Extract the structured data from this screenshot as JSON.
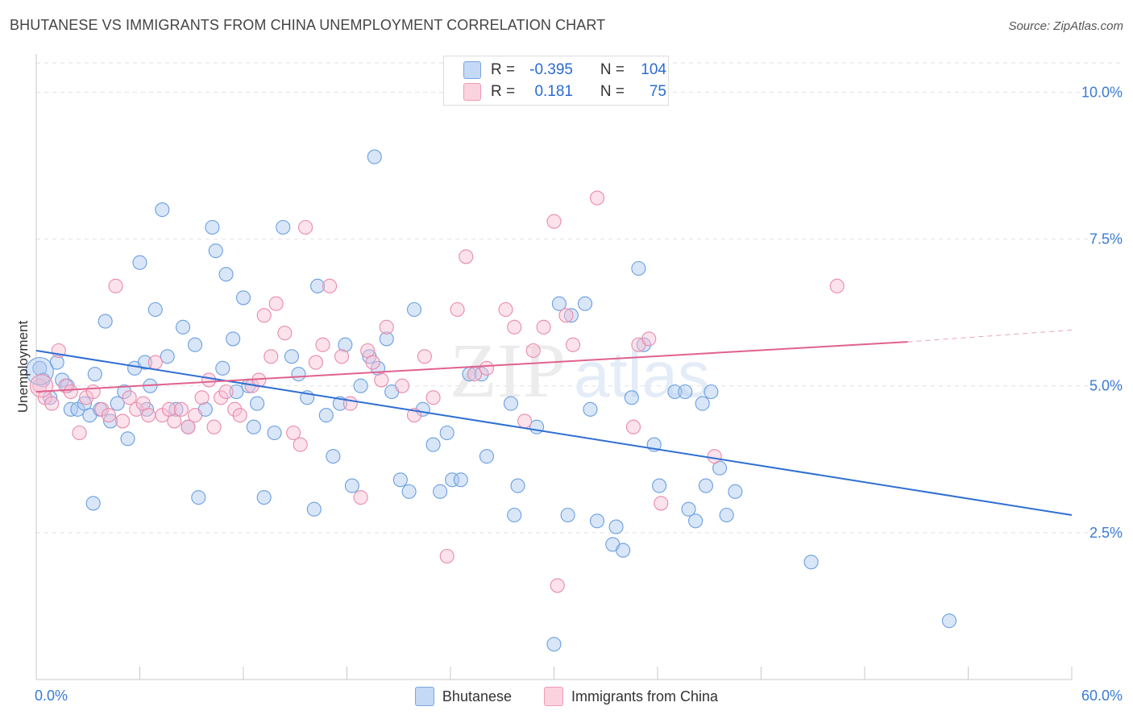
{
  "header": {
    "title": "BHUTANESE VS IMMIGRANTS FROM CHINA UNEMPLOYMENT CORRELATION CHART",
    "source": "Source: ZipAtlas.com"
  },
  "watermark": "ZIPatlas",
  "stats_legend": {
    "rows": [
      {
        "r_label": "R =",
        "r_value": "-0.395",
        "n_label": "N =",
        "n_value": "104",
        "color": "#aac8f0"
      },
      {
        "r_label": "R =",
        "r_value": "0.181",
        "n_label": "N =",
        "n_value": "75",
        "color": "#f5b8cc"
      }
    ]
  },
  "legend": [
    {
      "label": "Bhutanese",
      "color": "#b9d2f5",
      "border": "#7aa6e0"
    },
    {
      "label": "Immigrants from China",
      "color": "#fbd3df",
      "border": "#ee9ab5"
    }
  ],
  "chart_data": {
    "type": "scatter",
    "xlabel": "",
    "ylabel": "Unemployment",
    "xlim": [
      0,
      60
    ],
    "ylim": [
      0,
      10.5
    ],
    "x_tick_labels": [
      "0.0%",
      "60.0%"
    ],
    "y_tick_labels": [
      "2.5%",
      "5.0%",
      "7.5%",
      "10.0%"
    ],
    "y_ticks": [
      2.5,
      5.0,
      7.5,
      10.0
    ],
    "x_minor_ticks": [
      0,
      6,
      12,
      18,
      24,
      30,
      36,
      42,
      48,
      54,
      60
    ],
    "grid": true,
    "series": [
      {
        "name": "Bhutanese",
        "color": "#6a9fe0",
        "fill": "rgba(170,200,240,0.45)",
        "trend": {
          "x": [
            0,
            60
          ],
          "y": [
            5.6,
            2.8
          ],
          "color": "#2f6fd2"
        },
        "points": [
          [
            0.2,
            5.3
          ],
          [
            0.4,
            5.1
          ],
          [
            0.8,
            4.8
          ],
          [
            1.2,
            5.4
          ],
          [
            1.5,
            5.1
          ],
          [
            1.8,
            5.0
          ],
          [
            2.0,
            4.6
          ],
          [
            2.4,
            4.6
          ],
          [
            2.8,
            4.7
          ],
          [
            3.1,
            4.5
          ],
          [
            3.4,
            5.2
          ],
          [
            3.7,
            4.6
          ],
          [
            4.0,
            6.1
          ],
          [
            4.3,
            4.4
          ],
          [
            4.7,
            4.7
          ],
          [
            5.1,
            4.9
          ],
          [
            5.3,
            4.1
          ],
          [
            5.7,
            5.3
          ],
          [
            6.0,
            7.1
          ],
          [
            6.3,
            5.4
          ],
          [
            6.6,
            5.0
          ],
          [
            6.9,
            6.3
          ],
          [
            7.3,
            8.0
          ],
          [
            7.6,
            5.5
          ],
          [
            8.1,
            4.6
          ],
          [
            8.5,
            6.0
          ],
          [
            8.8,
            4.3
          ],
          [
            9.2,
            5.7
          ],
          [
            9.4,
            3.1
          ],
          [
            9.8,
            4.6
          ],
          [
            10.2,
            7.7
          ],
          [
            10.4,
            7.3
          ],
          [
            10.8,
            5.3
          ],
          [
            11.0,
            6.9
          ],
          [
            11.4,
            5.8
          ],
          [
            11.6,
            4.9
          ],
          [
            12.0,
            6.5
          ],
          [
            12.3,
            5.0
          ],
          [
            12.6,
            4.3
          ],
          [
            12.8,
            4.7
          ],
          [
            13.2,
            3.1
          ],
          [
            13.8,
            4.2
          ],
          [
            14.3,
            7.7
          ],
          [
            14.8,
            5.5
          ],
          [
            15.2,
            5.2
          ],
          [
            15.7,
            4.8
          ],
          [
            16.1,
            2.9
          ],
          [
            16.3,
            6.7
          ],
          [
            16.8,
            4.5
          ],
          [
            17.2,
            3.8
          ],
          [
            17.6,
            4.7
          ],
          [
            17.9,
            5.7
          ],
          [
            18.3,
            3.3
          ],
          [
            18.8,
            5.0
          ],
          [
            19.3,
            5.5
          ],
          [
            19.6,
            8.9
          ],
          [
            19.8,
            5.3
          ],
          [
            20.3,
            5.8
          ],
          [
            20.6,
            4.9
          ],
          [
            21.1,
            3.4
          ],
          [
            21.6,
            3.2
          ],
          [
            21.9,
            6.3
          ],
          [
            22.4,
            4.6
          ],
          [
            23.0,
            4.0
          ],
          [
            23.4,
            3.2
          ],
          [
            23.8,
            4.2
          ],
          [
            24.1,
            3.4
          ],
          [
            24.6,
            3.4
          ],
          [
            25.1,
            5.2
          ],
          [
            25.8,
            5.2
          ],
          [
            26.1,
            3.8
          ],
          [
            27.5,
            4.7
          ],
          [
            27.7,
            2.8
          ],
          [
            27.9,
            3.3
          ],
          [
            29.0,
            4.3
          ],
          [
            30.0,
            0.6
          ],
          [
            30.3,
            6.4
          ],
          [
            30.8,
            2.8
          ],
          [
            31.0,
            6.2
          ],
          [
            31.8,
            6.4
          ],
          [
            32.1,
            4.6
          ],
          [
            32.5,
            2.7
          ],
          [
            33.4,
            2.3
          ],
          [
            33.6,
            2.6
          ],
          [
            34.0,
            2.2
          ],
          [
            34.5,
            4.8
          ],
          [
            34.9,
            7.0
          ],
          [
            35.2,
            5.7
          ],
          [
            35.8,
            4.0
          ],
          [
            36.1,
            3.3
          ],
          [
            37.0,
            4.9
          ],
          [
            37.6,
            4.9
          ],
          [
            37.8,
            2.9
          ],
          [
            38.2,
            2.7
          ],
          [
            38.6,
            4.7
          ],
          [
            38.8,
            3.3
          ],
          [
            39.1,
            4.9
          ],
          [
            39.6,
            3.6
          ],
          [
            40.0,
            2.8
          ],
          [
            40.5,
            3.2
          ],
          [
            44.9,
            2.0
          ],
          [
            52.9,
            1.0
          ],
          [
            6.4,
            4.6
          ],
          [
            3.3,
            3.0
          ]
        ]
      },
      {
        "name": "Immigrants from China",
        "color": "#e98aaa",
        "fill": "rgba(248,190,210,0.45)",
        "trend": {
          "x": [
            0,
            50.5
          ],
          "y": [
            4.9,
            5.75
          ],
          "dash_to": [
            60,
            5.95
          ],
          "color": "#e0628d"
        },
        "points": [
          [
            0.2,
            5.0
          ],
          [
            0.5,
            4.8
          ],
          [
            0.9,
            4.7
          ],
          [
            1.3,
            5.6
          ],
          [
            1.7,
            5.0
          ],
          [
            2.0,
            4.9
          ],
          [
            2.5,
            4.2
          ],
          [
            2.9,
            4.8
          ],
          [
            3.3,
            4.9
          ],
          [
            3.8,
            4.6
          ],
          [
            4.2,
            4.5
          ],
          [
            4.6,
            6.7
          ],
          [
            5.0,
            4.4
          ],
          [
            5.4,
            4.8
          ],
          [
            5.8,
            4.6
          ],
          [
            6.2,
            4.7
          ],
          [
            6.5,
            4.5
          ],
          [
            6.9,
            5.4
          ],
          [
            7.3,
            4.5
          ],
          [
            7.7,
            4.6
          ],
          [
            8.0,
            4.4
          ],
          [
            8.4,
            4.6
          ],
          [
            8.8,
            4.3
          ],
          [
            9.2,
            4.5
          ],
          [
            9.6,
            4.8
          ],
          [
            10.0,
            5.1
          ],
          [
            10.3,
            4.3
          ],
          [
            10.7,
            4.8
          ],
          [
            11.0,
            4.9
          ],
          [
            11.5,
            4.6
          ],
          [
            11.8,
            4.5
          ],
          [
            12.5,
            5.0
          ],
          [
            12.9,
            5.1
          ],
          [
            13.2,
            6.2
          ],
          [
            13.6,
            5.5
          ],
          [
            13.9,
            6.4
          ],
          [
            14.4,
            5.9
          ],
          [
            14.9,
            4.2
          ],
          [
            15.3,
            4.0
          ],
          [
            15.6,
            7.7
          ],
          [
            16.2,
            5.4
          ],
          [
            16.6,
            5.7
          ],
          [
            17.0,
            6.7
          ],
          [
            17.7,
            5.5
          ],
          [
            18.2,
            4.7
          ],
          [
            18.8,
            3.1
          ],
          [
            19.2,
            5.6
          ],
          [
            19.5,
            5.4
          ],
          [
            20.0,
            5.1
          ],
          [
            20.3,
            6.0
          ],
          [
            21.2,
            5.0
          ],
          [
            21.9,
            4.5
          ],
          [
            22.5,
            5.5
          ],
          [
            23.0,
            4.8
          ],
          [
            23.8,
            2.1
          ],
          [
            24.4,
            6.3
          ],
          [
            24.9,
            7.2
          ],
          [
            25.4,
            5.2
          ],
          [
            26.1,
            5.3
          ],
          [
            27.2,
            6.3
          ],
          [
            27.7,
            6.0
          ],
          [
            28.3,
            4.4
          ],
          [
            28.8,
            5.6
          ],
          [
            29.4,
            6.0
          ],
          [
            30.0,
            7.8
          ],
          [
            30.2,
            1.6
          ],
          [
            30.7,
            6.2
          ],
          [
            31.1,
            5.7
          ],
          [
            32.5,
            8.2
          ],
          [
            34.6,
            4.3
          ],
          [
            34.9,
            5.7
          ],
          [
            35.5,
            5.8
          ],
          [
            36.2,
            3.0
          ],
          [
            39.3,
            3.8
          ],
          [
            46.4,
            6.7
          ]
        ]
      }
    ]
  }
}
